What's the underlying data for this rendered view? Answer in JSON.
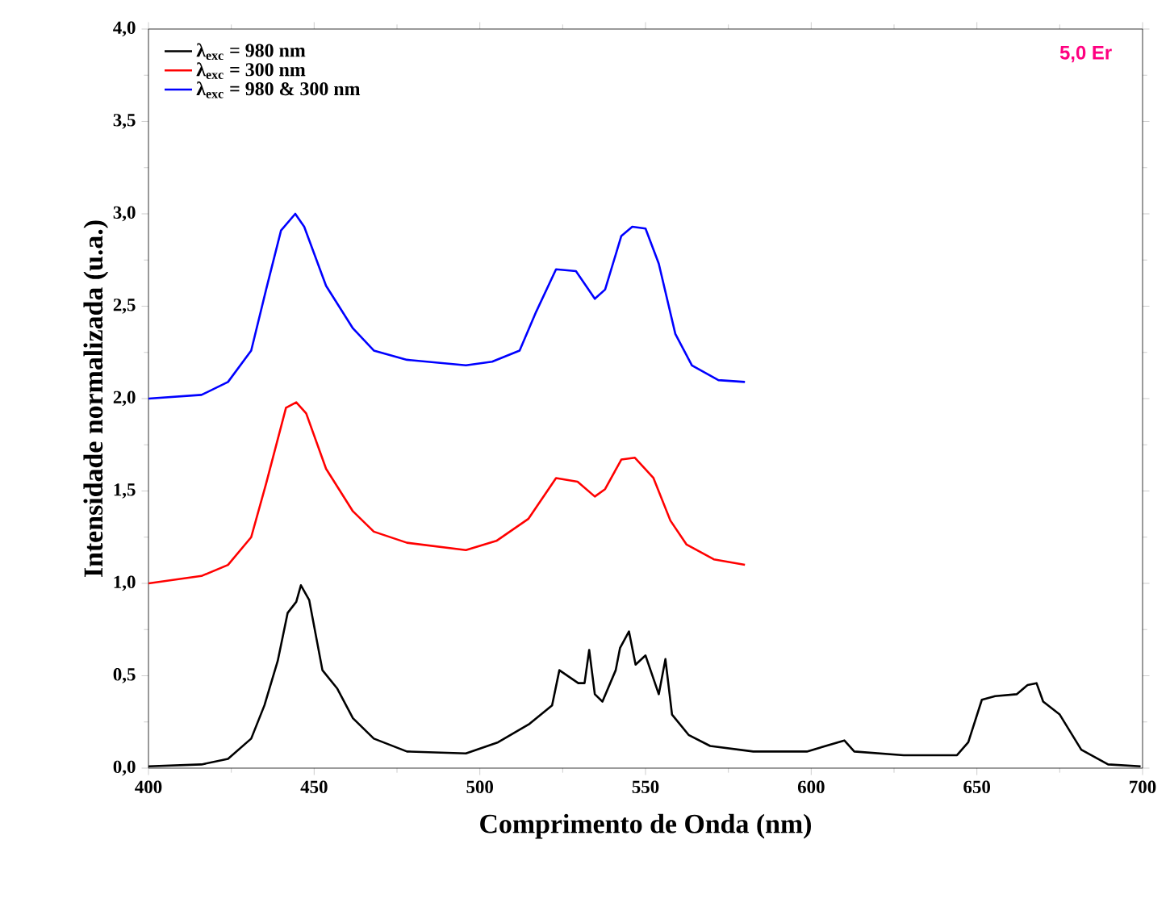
{
  "chart_data": {
    "type": "line",
    "xlabel": "Comprimento de Onda (nm)",
    "ylabel": "Intensidade normalizada (u.a.)",
    "xlim": [
      400,
      700
    ],
    "xticks": [
      400,
      450,
      500,
      550,
      600,
      650,
      700
    ],
    "ylim": [
      0,
      4
    ],
    "yticks": [
      {
        "value": 0,
        "label": "0,0"
      },
      {
        "value": 0.5,
        "label": "0,5"
      },
      {
        "value": 1,
        "label": "1,0"
      },
      {
        "value": 1.5,
        "label": "1,5"
      },
      {
        "value": 2,
        "label": "2,0"
      },
      {
        "value": 2.5,
        "label": "2,5"
      },
      {
        "value": 3,
        "label": "3,0"
      },
      {
        "value": 3.5,
        "label": "3,5"
      },
      {
        "value": 4,
        "label": "4,0"
      }
    ],
    "legend": "top left",
    "grid": false,
    "marker": "none",
    "line_style": "solid",
    "annotations": [
      "5,0 Er"
    ],
    "series": [
      {
        "name": "λ$_{exc}$ = 980 nm",
        "color": "#000000",
        "x": [
          400,
          416,
          424,
          431,
          435,
          439,
          442,
          444.6,
          446,
          448.5,
          452.5,
          457,
          461.7,
          468,
          478,
          495.8,
          505.5,
          515,
          521.8,
          524,
          529.7,
          531.6,
          533,
          534.7,
          537,
          541,
          542.3,
          545,
          547,
          550,
          554,
          556,
          558,
          563,
          569.5,
          582.5,
          598.7,
          610,
          613,
          627.9,
          644,
          647.4,
          651.5,
          655.5,
          662,
          665.3,
          668,
          670,
          675,
          681.5,
          689.6,
          699.4
        ],
        "values": [
          0.01,
          0.02,
          0.05,
          0.16,
          0.34,
          0.58,
          0.84,
          0.9,
          0.99,
          0.91,
          0.53,
          0.43,
          0.27,
          0.16,
          0.09,
          0.08,
          0.14,
          0.24,
          0.34,
          0.53,
          0.46,
          0.46,
          0.64,
          0.4,
          0.36,
          0.53,
          0.65,
          0.74,
          0.56,
          0.61,
          0.4,
          0.59,
          0.29,
          0.18,
          0.12,
          0.09,
          0.09,
          0.15,
          0.09,
          0.07,
          0.07,
          0.14,
          0.37,
          0.39,
          0.4,
          0.45,
          0.46,
          0.36,
          0.29,
          0.1,
          0.02,
          0.01
        ]
      },
      {
        "name": "λ$_{exc}$ = 300 nm",
        "color": "#ff0000",
        "x": [
          400,
          416,
          424,
          431,
          435.5,
          441.5,
          444.6,
          447.6,
          453.6,
          461.7,
          468,
          478,
          495.8,
          505,
          514.7,
          523,
          529.5,
          534.7,
          537.8,
          542.7,
          546.8,
          552.4,
          557.5,
          562.4,
          570.6,
          580
        ],
        "values": [
          1.0,
          1.04,
          1.1,
          1.25,
          1.54,
          1.95,
          1.98,
          1.92,
          1.62,
          1.39,
          1.28,
          1.22,
          1.18,
          1.23,
          1.35,
          1.57,
          1.55,
          1.47,
          1.51,
          1.67,
          1.68,
          1.57,
          1.34,
          1.21,
          1.13,
          1.1
        ]
      },
      {
        "name": "λ$_{exc}$ = 980 & 300 nm",
        "color": "#0000ff",
        "x": [
          400,
          416,
          424,
          431,
          435.5,
          440,
          444.3,
          447,
          453.6,
          461.7,
          468,
          478,
          495.8,
          503.7,
          512,
          517,
          523,
          529,
          534.7,
          537.8,
          542.7,
          546,
          550,
          554,
          559,
          564,
          572,
          580
        ],
        "values": [
          2.0,
          2.02,
          2.09,
          2.26,
          2.59,
          2.91,
          3.0,
          2.93,
          2.61,
          2.38,
          2.26,
          2.21,
          2.18,
          2.2,
          2.26,
          2.47,
          2.7,
          2.69,
          2.54,
          2.59,
          2.88,
          2.93,
          2.92,
          2.73,
          2.35,
          2.18,
          2.1,
          2.09
        ]
      }
    ]
  }
}
